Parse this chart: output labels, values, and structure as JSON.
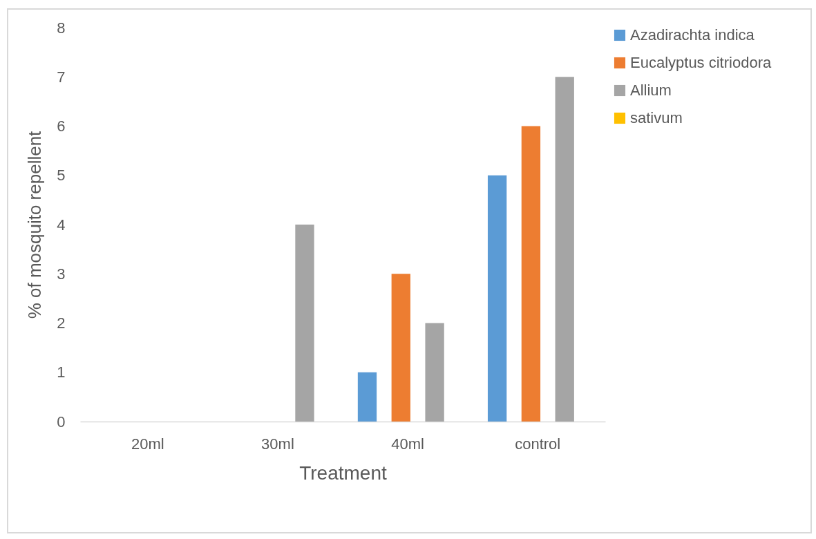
{
  "chart_data": {
    "type": "bar",
    "xlabel": "Treatment",
    "ylabel": "% of mosquito repellent",
    "categories": [
      "20ml",
      "30ml",
      "40ml",
      "control"
    ],
    "series": [
      {
        "name": "Azadirachta indica",
        "color": "#5b9bd5",
        "values": [
          0,
          0,
          1,
          5
        ]
      },
      {
        "name": "Eucalyptus citriodora",
        "color": "#ed7d31",
        "values": [
          0,
          0,
          3,
          6
        ]
      },
      {
        "name": "Allium",
        "color": "#a5a5a5",
        "values": [
          0,
          4,
          2,
          7
        ]
      },
      {
        "name": "sativum",
        "color": "#ffc000",
        "values": [
          0,
          0,
          0,
          0
        ]
      }
    ],
    "ylim": [
      0,
      8
    ],
    "yticks": [
      0,
      1,
      2,
      3,
      4,
      5,
      6,
      7,
      8
    ],
    "grid": false,
    "legend": "right"
  }
}
